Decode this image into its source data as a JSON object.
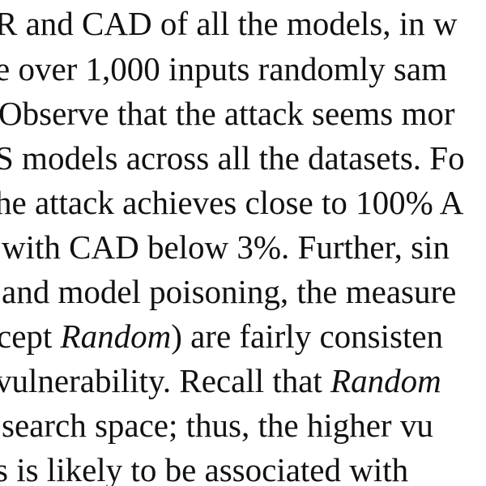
{
  "paragraph": {
    "line1": "R and CAD of all the models, in w",
    "line2": "e over 1,000 inputs randomly sam",
    "line3": "Observe that the attack seems mor",
    "line4": "S models across all the datasets. Fo",
    "line5": "he attack achieves close to 100% A",
    "line6": "with CAD below 3%. Further, sin",
    "line7": "and model poisoning, the measure",
    "line8a": "cept ",
    "line8b": "Random",
    "line8c": ") are fairly consisten",
    "line9a": "vulnerability. Recall that ",
    "line9b": "Random",
    "line10": "search space; thus, the higher vu",
    "line11": "s is likely to be associated with"
  }
}
